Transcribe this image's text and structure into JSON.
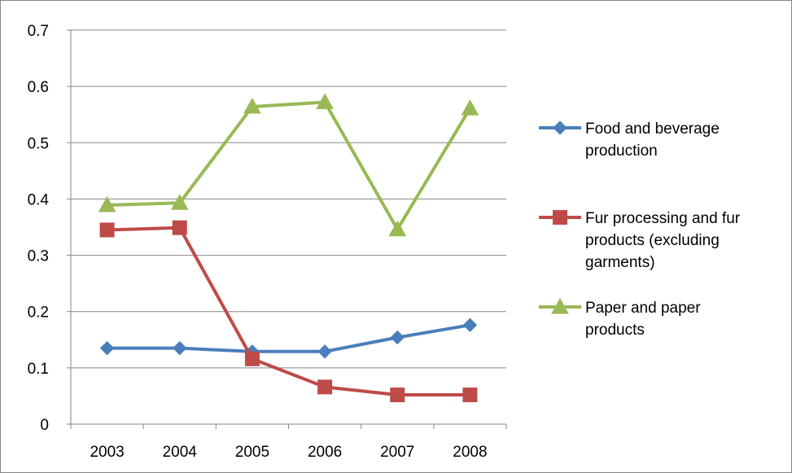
{
  "chart_data": {
    "type": "line",
    "title": "",
    "xlabel": "",
    "ylabel": "",
    "categories": [
      "2003",
      "2004",
      "2005",
      "2006",
      "2007",
      "2008"
    ],
    "ylim": [
      0,
      0.7
    ],
    "yticks": [
      "0",
      "0.1",
      "0.2",
      "0.3",
      "0.4",
      "0.5",
      "0.6",
      "0.7"
    ],
    "grid": true,
    "legend_position": "right",
    "series": [
      {
        "name": "Food and beverage production",
        "legend_lines": [
          "Food and beverage",
          "production"
        ],
        "marker": "diamond",
        "color": "#4a7ebb",
        "values": [
          0.135,
          0.135,
          0.129,
          0.129,
          0.154,
          0.176
        ]
      },
      {
        "name": "Fur processing and fur products (excluding garments)",
        "legend_lines": [
          "Fur processing and fur",
          "products (excluding",
          "garments)"
        ],
        "marker": "square",
        "color": "#be4b48",
        "values": [
          0.345,
          0.349,
          0.116,
          0.066,
          0.052,
          0.052
        ]
      },
      {
        "name": "Paper and paper products",
        "legend_lines": [
          "Paper and paper",
          "products"
        ],
        "marker": "triangle",
        "color": "#98b954",
        "values": [
          0.389,
          0.393,
          0.564,
          0.572,
          0.346,
          0.561
        ]
      }
    ]
  }
}
